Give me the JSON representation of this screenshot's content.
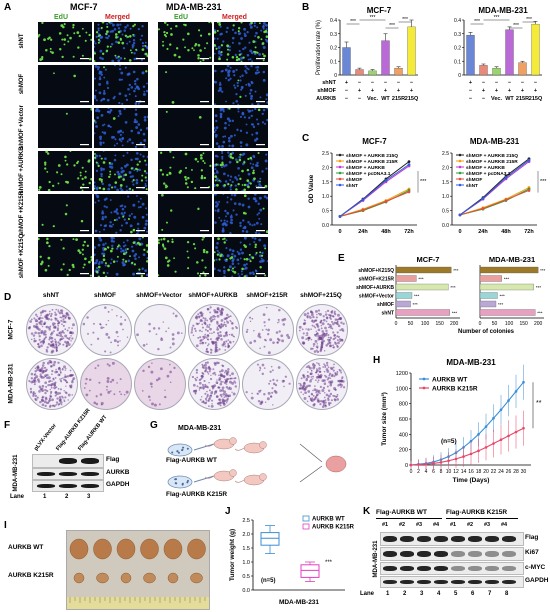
{
  "panels": {
    "A": "A",
    "B": "B",
    "C": "C",
    "D": "D",
    "E": "E",
    "F": "F",
    "G": "G",
    "H": "H",
    "I": "I",
    "J": "J",
    "K": "K"
  },
  "panelA": {
    "cell_lines": [
      "MCF-7",
      "MDA-MB-231"
    ],
    "channels": [
      "EdU",
      "Merged",
      "EdU",
      "Merged"
    ],
    "rows": [
      "shNT",
      "shMOF",
      "shMOF +Vector",
      "shMOF +AURKB",
      "shMOF +K215R",
      "shMOF +K215Q"
    ],
    "edu_density": [
      0.9,
      0.05,
      0.05,
      0.85,
      0.1,
      0.8
    ],
    "edu_color": "#6de04a",
    "nuclei_color": "#2f5fd8"
  },
  "panelB": {
    "charts": [
      {
        "title": "MCF-7",
        "ylabel": "Proliferation rate (%)",
        "ylim": [
          0,
          0.4
        ],
        "ticks": [
          "0",
          "0.1",
          "0.2",
          "0.3",
          "0.4"
        ]
      },
      {
        "title": "MDA-MB-231",
        "ylabel": "",
        "ylim": [
          0,
          0.4
        ],
        "ticks": [
          "0",
          "0.1",
          "0.2",
          "0.3",
          "0.4"
        ]
      }
    ],
    "row_labels": [
      "shNT",
      "shMOF",
      "AURKB"
    ],
    "signs_shNT": [
      "+",
      "−",
      "−",
      "−",
      "−",
      "−"
    ],
    "signs_shMOF": [
      "−",
      "+",
      "+",
      "+",
      "+",
      "+"
    ],
    "aurkb_labels": [
      "−",
      "−",
      "Vec.",
      "WT",
      "215R",
      "215Q"
    ],
    "stars": "***"
  },
  "panelC": {
    "charts": [
      {
        "title": "MCF-7",
        "ylabel": "OD Value"
      },
      {
        "title": "MDA-MB-231",
        "ylabel": ""
      }
    ],
    "xticks": [
      "0",
      "24h",
      "48h",
      "72h"
    ],
    "yticks": [
      "0.0",
      "0.5",
      "1.0",
      "1.5",
      "2.0",
      "2.5"
    ],
    "legend": [
      "shMOF + AURKB 215Q",
      "shMOF + AURKB 215R",
      "shMOF + AURKB",
      "shMOF + pcDNA3.1",
      "shMOF",
      "shNT"
    ],
    "stars": "***"
  },
  "panelD": {
    "columns": [
      "shNT",
      "shMOF",
      "shMOF+Vector",
      "shMOF+AURKB",
      "shMOF+215R",
      "shMOF+215Q"
    ],
    "rows": [
      "MCF-7",
      "MDA-MB-231"
    ],
    "colony_density": [
      0.95,
      0.15,
      0.1,
      0.85,
      0.2,
      0.9
    ]
  },
  "panelE": {
    "charts": [
      {
        "title": "MCF-7"
      },
      {
        "title": "MDA-MB-231"
      }
    ],
    "categories": [
      "shMOF+K215Q",
      "shMOF+K215R",
      "shMOF+AURKB",
      "shMOF+Vector",
      "shMOF",
      "shNT"
    ],
    "xticks": [
      "0",
      "50",
      "100",
      "150",
      "200"
    ],
    "xlabel": "Number of colonies",
    "stars": "***"
  },
  "panelF": {
    "cell_line": "MDA-MB-231",
    "lanes_title": [
      "pLVX-Vector",
      "Flag-AURKB K215R",
      "Flag-AURKB WT"
    ],
    "bands": [
      "Flag",
      "AURKB",
      "GAPDH"
    ],
    "lane_label": "Lane",
    "lanes": [
      "1",
      "2",
      "3"
    ]
  },
  "panelG": {
    "cell_line": "MDA-MB-231",
    "groups": [
      "Flag-AURKB WT",
      "Flag-AURKB K215R"
    ]
  },
  "panelH": {
    "title": "MDA-MB-231",
    "ylabel": "Tumor size (mm³)",
    "xlabel": "Time (Days)",
    "yticks": [
      "0",
      "200",
      "400",
      "600",
      "800",
      "1000",
      "1200"
    ],
    "xticks": [
      "0",
      "2",
      "4",
      "6",
      "8",
      "10",
      "12",
      "14",
      "16",
      "18",
      "20",
      "22",
      "24",
      "26",
      "28",
      "30"
    ],
    "legend": [
      "AURKB WT",
      "AURKB K215R"
    ],
    "n_label": "(n=5)",
    "stars": "**"
  },
  "panelI": {
    "groups": [
      "AURKB WT",
      "AURKB K215R"
    ]
  },
  "panelJ": {
    "ylabel": "Tumor weight (g)",
    "yticks": [
      "0.0",
      "0.5",
      "1.0",
      "1.5",
      "2.0",
      "2.5"
    ],
    "legend": [
      "AURKB WT",
      "AURKB K215R"
    ],
    "n_label": "(n=5)",
    "stars": "***",
    "xlabel": "MDA-MB-231"
  },
  "panelK": {
    "cell_line": "MDA-MB-231",
    "groups": [
      "Flag-AURKB WT",
      "Flag-AURKB K215R"
    ],
    "replicates": [
      "#1",
      "#2",
      "#3",
      "#4",
      "#1",
      "#2",
      "#3",
      "#4"
    ],
    "bands": [
      "Flag",
      "Ki67",
      "c-MYC",
      "GAPDH"
    ],
    "lane_label": "Lane",
    "lanes": [
      "1",
      "2",
      "3",
      "4",
      "5",
      "6",
      "7",
      "8"
    ]
  },
  "chart_data": [
    {
      "type": "bar",
      "name_ref": "B-MCF-7",
      "categories": [
        "shNT",
        "shMOF",
        "Vec.",
        "WT",
        "215R",
        "215Q"
      ],
      "values": [
        0.2,
        0.04,
        0.03,
        0.25,
        0.05,
        0.35
      ],
      "errors": [
        0.04,
        0.01,
        0.01,
        0.05,
        0.01,
        0.05
      ],
      "colors": [
        "#6a86d6",
        "#e88a7a",
        "#9bd46a",
        "#b96ad6",
        "#f0a060",
        "#f3ea3a"
      ],
      "title": "MCF-7",
      "ylabel": "Proliferation rate (%)",
      "ylim": [
        0,
        0.4
      ]
    },
    {
      "type": "bar",
      "name_ref": "B-MDA-MB-231",
      "categories": [
        "shNT",
        "shMOF",
        "Vec.",
        "WT",
        "215R",
        "215Q"
      ],
      "values": [
        0.29,
        0.07,
        0.05,
        0.33,
        0.09,
        0.37
      ],
      "errors": [
        0.02,
        0.01,
        0.01,
        0.02,
        0.01,
        0.02
      ],
      "colors": [
        "#6a86d6",
        "#e88a7a",
        "#9bd46a",
        "#b96ad6",
        "#f0a060",
        "#f3ea3a"
      ],
      "title": "MDA-MB-231",
      "ylabel": "",
      "ylim": [
        0,
        0.4
      ]
    },
    {
      "type": "line",
      "name_ref": "C-MCF-7",
      "x": [
        "0",
        "24h",
        "48h",
        "72h"
      ],
      "ylim": [
        0,
        2.5
      ],
      "series": [
        {
          "name": "shMOF + AURKB 215Q",
          "values": [
            0.3,
            0.9,
            1.6,
            2.2
          ],
          "color": "#222222"
        },
        {
          "name": "shMOF + AURKB 215R",
          "values": [
            0.3,
            0.55,
            0.85,
            1.25
          ],
          "color": "#f39c12"
        },
        {
          "name": "shMOF + AURKB",
          "values": [
            0.3,
            0.85,
            1.5,
            2.05
          ],
          "color": "#c03ad6"
        },
        {
          "name": "shMOF + pcDNA3.1",
          "values": [
            0.3,
            0.5,
            0.8,
            1.2
          ],
          "color": "#2e9e3a"
        },
        {
          "name": "shMOF",
          "values": [
            0.3,
            0.52,
            0.82,
            1.15
          ],
          "color": "#e74c3c"
        },
        {
          "name": "shNT",
          "values": [
            0.3,
            0.88,
            1.55,
            2.1
          ],
          "color": "#2f5fd8"
        }
      ]
    },
    {
      "type": "line",
      "name_ref": "C-MDA-MB-231",
      "x": [
        "0",
        "24h",
        "48h",
        "72h"
      ],
      "ylim": [
        0,
        2.5
      ],
      "series": [
        {
          "name": "shMOF + AURKB 215Q",
          "values": [
            0.35,
            0.95,
            1.7,
            2.3
          ],
          "color": "#222222"
        },
        {
          "name": "shMOF + AURKB 215R",
          "values": [
            0.35,
            0.6,
            0.9,
            1.3
          ],
          "color": "#f39c12"
        },
        {
          "name": "shMOF + AURKB",
          "values": [
            0.35,
            0.9,
            1.6,
            2.2
          ],
          "color": "#c03ad6"
        },
        {
          "name": "shMOF + pcDNA3.1",
          "values": [
            0.35,
            0.55,
            0.85,
            1.25
          ],
          "color": "#2e9e3a"
        },
        {
          "name": "shMOF",
          "values": [
            0.35,
            0.57,
            0.88,
            1.2
          ],
          "color": "#e74c3c"
        },
        {
          "name": "shNT",
          "values": [
            0.35,
            0.92,
            1.65,
            2.25
          ],
          "color": "#2f5fd8"
        }
      ]
    },
    {
      "type": "bar",
      "orientation": "horizontal",
      "name_ref": "E-MCF-7",
      "categories": [
        "shMOF+K215Q",
        "shMOF+K215R",
        "shMOF+AURKB",
        "shMOF+Vector",
        "shMOF",
        "shNT"
      ],
      "values": [
        190,
        70,
        180,
        55,
        50,
        185
      ],
      "colors": [
        "#9c7a2a",
        "#e8a0a0",
        "#d6e8b0",
        "#9ad6d6",
        "#b9a8d6",
        "#e8a0c0"
      ],
      "xlim": [
        0,
        220
      ],
      "xlabel": "Number of colonies"
    },
    {
      "type": "bar",
      "orientation": "horizontal",
      "name_ref": "E-MDA-MB-231",
      "categories": [
        "shMOF+K215Q",
        "shMOF+K215R",
        "shMOF+AURKB",
        "shMOF+Vector",
        "shMOF",
        "shNT"
      ],
      "values": [
        200,
        75,
        185,
        60,
        55,
        190
      ],
      "colors": [
        "#9c7a2a",
        "#e8a0a0",
        "#d6e8b0",
        "#9ad6d6",
        "#b9a8d6",
        "#e8a0c0"
      ],
      "xlim": [
        0,
        220
      ],
      "xlabel": "Number of colonies"
    },
    {
      "type": "line",
      "name_ref": "H",
      "x": [
        0,
        2,
        4,
        6,
        8,
        10,
        12,
        14,
        16,
        18,
        20,
        22,
        24,
        26,
        28,
        30
      ],
      "ylim": [
        0,
        1200
      ],
      "xlabel": "Time (Days)",
      "ylabel": "Tumor size (mm³)",
      "series": [
        {
          "name": "AURKB WT",
          "values": [
            0,
            10,
            20,
            40,
            70,
            110,
            160,
            230,
            310,
            400,
            500,
            610,
            720,
            840,
            960,
            1080
          ],
          "color": "#3a8ed6"
        },
        {
          "name": "AURKB K215R",
          "values": [
            0,
            5,
            10,
            20,
            35,
            55,
            80,
            110,
            145,
            185,
            230,
            280,
            330,
            380,
            430,
            480
          ],
          "color": "#e8476a"
        }
      ]
    },
    {
      "type": "box",
      "name_ref": "J",
      "categories": [
        "AURKB WT",
        "AURKB K215R"
      ],
      "boxes": [
        {
          "min": 1.3,
          "q1": 1.6,
          "median": 1.85,
          "q3": 2.05,
          "max": 2.3,
          "color": "#3a8ed6"
        },
        {
          "min": 0.3,
          "q1": 0.45,
          "median": 0.7,
          "q3": 0.9,
          "max": 1.0,
          "color": "#e040c0"
        }
      ],
      "ylim": [
        0,
        2.5
      ],
      "ylabel": "Tumor weight (g)"
    }
  ]
}
